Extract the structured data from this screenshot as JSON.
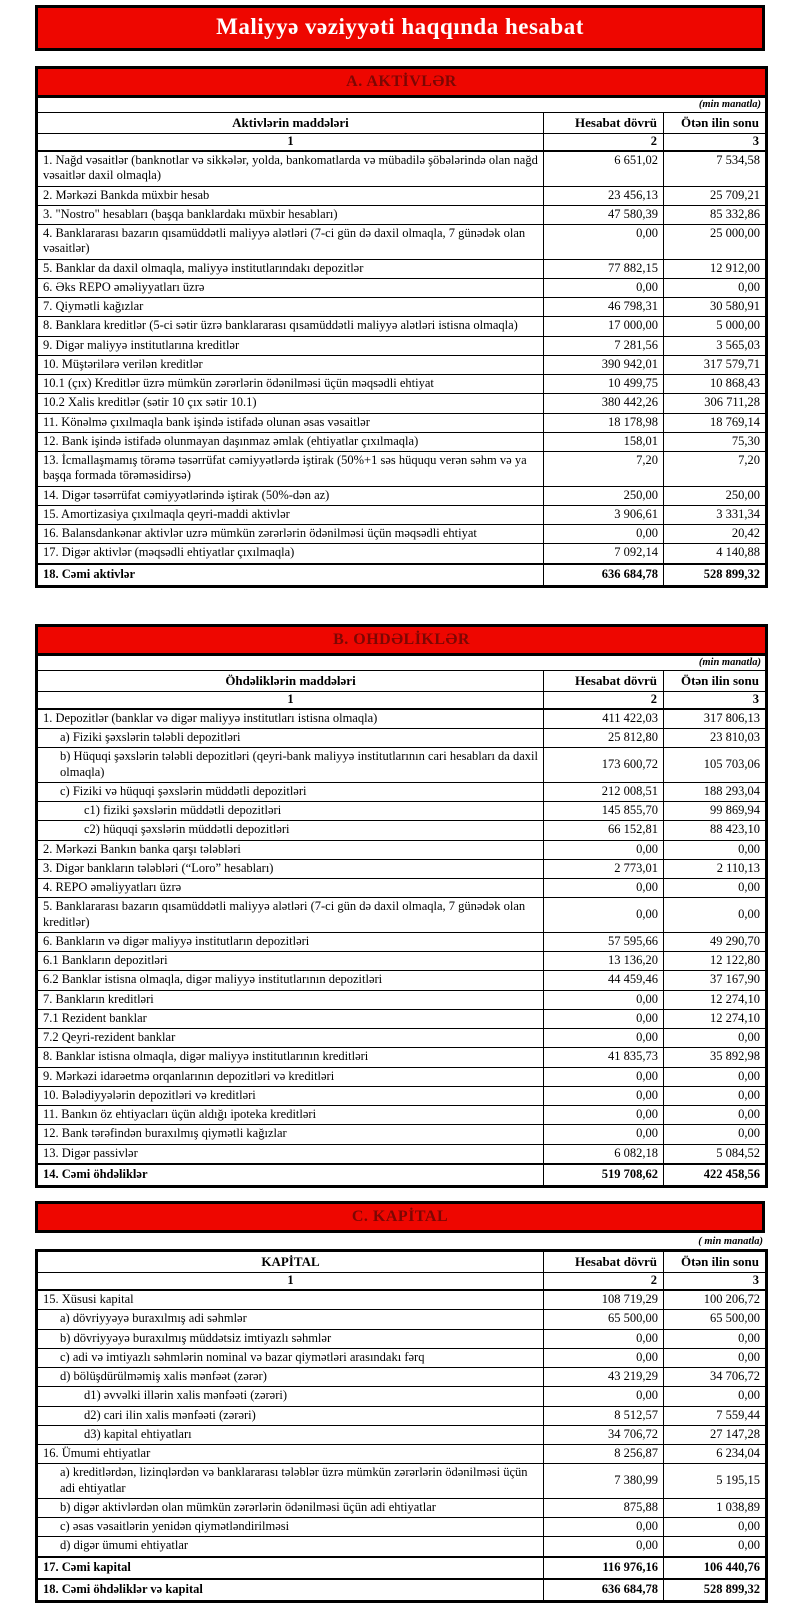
{
  "page_title": "Maliyyə vəziyyəti haqqında hesabat",
  "colors": {
    "accent_red": "#ee0600",
    "section_bar_text": "#7c0703",
    "title_text": "#ffffff",
    "border": "#000000"
  },
  "columns": {
    "current": "Hesabat dövrü",
    "previous": "Ötən ilin sonu",
    "index_row": [
      "1",
      "2",
      "3"
    ]
  },
  "sections": [
    {
      "id": "A",
      "title": "A. AKTİVLƏR",
      "unit_note": "(min manatla)",
      "items_header": "Aktivlərin maddələri",
      "rows": [
        {
          "label": "1. Nağd vəsaitlər (banknotlar və sikkələr, yolda, bankomatlarda və mübadilə şöbələrində olan nağd vəsaitlər daxil olmaqla)",
          "current": "6 651,02",
          "previous": "7 534,58",
          "indent": 0
        },
        {
          "label": "2. Mərkəzi Bankda müxbir hesab",
          "current": "23 456,13",
          "previous": "25 709,21",
          "indent": 0
        },
        {
          "label": "3. \"Nostro\" hesabları (başqa banklardakı müxbir hesabları)",
          "current": "47 580,39",
          "previous": "85 332,86",
          "indent": 0
        },
        {
          "label": "4. Banklararası bazarın qısamüddətli maliyyə alətləri (7-ci gün də daxil olmaqla, 7 günədək olan vəsaitlər)",
          "current": "0,00",
          "previous": "25 000,00",
          "indent": 0
        },
        {
          "label": "5. Banklar da daxil olmaqla, maliyyə institutlarındakı depozitlər",
          "current": "77 882,15",
          "previous": "12 912,00",
          "indent": 0
        },
        {
          "label": "6. Əks REPO əməliyyatları üzrə",
          "current": "0,00",
          "previous": "0,00",
          "indent": 0
        },
        {
          "label": "7. Qiymətli kağızlar",
          "current": "46 798,31",
          "previous": "30 580,91",
          "indent": 0
        },
        {
          "label": "8. Banklara kreditlər (5-ci sətir üzrə banklararası qısamüddətli maliyyə alətləri istisna olmaqla)",
          "current": "17 000,00",
          "previous": "5 000,00",
          "indent": 0
        },
        {
          "label": "9. Digər maliyyə institutlarına kreditlər",
          "current": "7 281,56",
          "previous": "3 565,03",
          "indent": 0
        },
        {
          "label": "10. Müştərilərə verilən kreditlər",
          "current": "390 942,01",
          "previous": "317 579,71",
          "indent": 0
        },
        {
          "label": "10.1 (çıx) Kreditlər üzrə mümkün zərərlərin ödənilməsi üçün məqsədli ehtiyat",
          "current": "10 499,75",
          "previous": "10 868,43",
          "indent": 0
        },
        {
          "label": "10.2 Xalis kreditlər (sətir 10 çıx sətir 10.1)",
          "current": "380 442,26",
          "previous": "306 711,28",
          "indent": 0
        },
        {
          "label": "11. Könəlmə çıxılmaqla bank işində istifadə olunan əsas vəsaitlər",
          "current": "18 178,98",
          "previous": "18 769,14",
          "indent": 0
        },
        {
          "label": "12. Bank işində istifadə olunmayan daşınmaz əmlak (ehtiyatlar çıxılmaqla)",
          "current": "158,01",
          "previous": "75,30",
          "indent": 0
        },
        {
          "label": "13. İcmallaşmamış törəmə təsərrüfat cəmiyyətlərdə iştirak (50%+1 səs hüququ verən səhm və ya başqa formada törəməsidirsə)",
          "current": "7,20",
          "previous": "7,20",
          "indent": 0
        },
        {
          "label": "14. Digər təsərrüfat cəmiyyətlərində iştirak (50%-dən az)",
          "current": "250,00",
          "previous": "250,00",
          "indent": 0
        },
        {
          "label": "15. Amortizasiya çıxılmaqla qeyri-maddi aktivlər",
          "current": "3 906,61",
          "previous": "3 331,34",
          "indent": 0
        },
        {
          "label": "16. Balansdankənar aktivlər uzrə mümkün zərərlərin ödənilməsi üçün məqsədli ehtiyat",
          "current": "0,00",
          "previous": "20,42",
          "indent": 0
        },
        {
          "label": "17. Digər aktivlər (məqsədli ehtiyatlar çıxılmaqla)",
          "current": "7 092,14",
          "previous": "4 140,88",
          "indent": 0
        },
        {
          "label": "18. Cəmi aktivlər",
          "current": "636 684,78",
          "previous": "528 899,32",
          "indent": 0,
          "bold": true
        }
      ]
    },
    {
      "id": "B",
      "title": "B. OHDƏLİKLƏR",
      "unit_note": "(min manatla)",
      "items_header": "Öhdəliklərin maddələri",
      "rows": [
        {
          "label": "1. Depozitlər (banklar və digər maliyyə institutları istisna olmaqla)",
          "current": "411 422,03",
          "previous": "317 806,13",
          "indent": 0
        },
        {
          "label": "a)  Fiziki şəxslərin tələbli depozitləri",
          "current": "25 812,80",
          "previous": "23 810,03",
          "indent": 1
        },
        {
          "label": "b) Hüquqi şəxslərin tələbli depozitləri (qeyri-bank maliyyə institutlarının cari hesabları da daxil olmaqla)",
          "current": "173 600,72",
          "previous": "105 703,06",
          "indent": 1
        },
        {
          "label": "c) Fiziki və hüquqi şəxslərin müddətli depozitləri",
          "current": "212 008,51",
          "previous": "188 293,04",
          "indent": 1
        },
        {
          "label": "c1) fiziki şəxslərin müddətli depozitləri",
          "current": "145 855,70",
          "previous": "99 869,94",
          "indent": 2
        },
        {
          "label": "c2) hüquqi şəxslərin müddətli depozitləri",
          "current": "66 152,81",
          "previous": "88 423,10",
          "indent": 2
        },
        {
          "label": "2. Mərkəzi Bankın banka qarşı tələbləri",
          "current": "0,00",
          "previous": "0,00",
          "indent": 0
        },
        {
          "label": "3. Digər bankların tələbləri (“Loro” hesabları)",
          "current": "2 773,01",
          "previous": "2 110,13",
          "indent": 0
        },
        {
          "label": "4. REPO əməliyyatları  üzrə",
          "current": "0,00",
          "previous": "0,00",
          "indent": 0
        },
        {
          "label": "5. Banklararası bazarın qısamüddətli maliyyə alətləri (7-ci gün də daxil olmaqla, 7 günədək olan kreditlər)",
          "current": "0,00",
          "previous": "0,00",
          "indent": 0
        },
        {
          "label": "6. Bankların və digər maliyyə institutların depozitləri",
          "current": "57 595,66",
          "previous": "49 290,70",
          "indent": 0
        },
        {
          "label": "6.1  Bankların depozitləri",
          "current": "13 136,20",
          "previous": "12 122,80",
          "indent": 0
        },
        {
          "label": "6.2 Banklar istisna olmaqla, digər maliyyə institutlarının depozitləri",
          "current": "44 459,46",
          "previous": "37 167,90",
          "indent": 0
        },
        {
          "label": "7. Bankların kreditləri",
          "current": "0,00",
          "previous": "12 274,10",
          "indent": 0
        },
        {
          "label": "7.1 Rezident banklar",
          "current": "0,00",
          "previous": "12 274,10",
          "indent": 0
        },
        {
          "label": "7.2 Qeyri-rezident banklar",
          "current": "0,00",
          "previous": "0,00",
          "indent": 0
        },
        {
          "label": "8. Banklar istisna olmaqla, digər maliyyə institutlarının kreditləri",
          "current": "41 835,73",
          "previous": "35 892,98",
          "indent": 0
        },
        {
          "label": "9. Mərkəzi idarəetmə orqanlarının depozitləri və kreditləri",
          "current": "0,00",
          "previous": "0,00",
          "indent": 0
        },
        {
          "label": "10. Bələdiyyələrin depozitləri və kreditləri",
          "current": "0,00",
          "previous": "0,00",
          "indent": 0
        },
        {
          "label": "11. Bankın öz ehtiyacları üçün aldığı ipoteka kreditləri",
          "current": "0,00",
          "previous": "0,00",
          "indent": 0
        },
        {
          "label": "12. Bank tərəfindən buraxılmış qiymətli kağızlar",
          "current": "0,00",
          "previous": "0,00",
          "indent": 0
        },
        {
          "label": "13. Digər passivlər",
          "current": "6 082,18",
          "previous": "5 084,52",
          "indent": 0
        },
        {
          "label": "14. Cəmi öhdəliklər",
          "current": "519 708,62",
          "previous": "422 458,56",
          "indent": 0,
          "bold": true
        }
      ]
    },
    {
      "id": "C",
      "title": "C. KAPİTAL",
      "unit_note": "( min manatla)",
      "items_header": "KAPİTAL",
      "rows": [
        {
          "label": "15. Xüsusi kapital",
          "current": "108 719,29",
          "previous": "100 206,72",
          "indent": 0
        },
        {
          "label": "a) dövriyyəyə buraxılmış adi səhmlər",
          "current": "65 500,00",
          "previous": "65 500,00",
          "indent": 1
        },
        {
          "label": "b) dövriyyəyə buraxılmış müddətsiz imtiyazlı səhmlər",
          "current": "0,00",
          "previous": "0,00",
          "indent": 1
        },
        {
          "label": "c) adi və imtiyazlı səhmlərin nominal və bazar qiymətləri arasındakı fərq",
          "current": "0,00",
          "previous": "0,00",
          "indent": 1
        },
        {
          "label": "d) bölüşdürülməmiş xalis mənfəət (zərər)",
          "current": "43 219,29",
          "previous": "34 706,72",
          "indent": 1
        },
        {
          "label": "d1) əvvəlki illərin xalis mənfəəti (zərəri)",
          "current": "0,00",
          "previous": "0,00",
          "indent": 2
        },
        {
          "label": "d2) cari ilin xalis mənfəəti (zərəri)",
          "current": "8 512,57",
          "previous": "7 559,44",
          "indent": 2
        },
        {
          "label": "d3) kapital ehtiyatları",
          "current": "34 706,72",
          "previous": "27 147,28",
          "indent": 2
        },
        {
          "label": "16. Ümumi ehtiyatlar",
          "current": "8 256,87",
          "previous": "6 234,04",
          "indent": 0
        },
        {
          "label": "a) kreditlərdən, lizinqlərdən və banklararası  tələblər üzrə mümkün zərərlərin ödənilməsi üçün adi ehtiyatlar",
          "current": "7 380,99",
          "previous": "5 195,15",
          "indent": 1
        },
        {
          "label": "b) digər aktivlərdən olan mümkün zərərlərin ödənilməsi üçün adi ehtiyatlar",
          "current": "875,88",
          "previous": "1 038,89",
          "indent": 1
        },
        {
          "label": "c) əsas vəsaitlərin yenidən qiymətləndirilməsi",
          "current": "0,00",
          "previous": "0,00",
          "indent": 1
        },
        {
          "label": "d) digər ümumi ehtiyatlar",
          "current": "0,00",
          "previous": "0,00",
          "indent": 1
        },
        {
          "label": "17. Cəmi kapital",
          "current": "116 976,16",
          "previous": "106 440,76",
          "indent": 0,
          "bold": true
        },
        {
          "label": "18. Cəmi öhdəliklər və kapital",
          "current": "636 684,78",
          "previous": "528 899,32",
          "indent": 0,
          "bold": true
        }
      ]
    }
  ]
}
